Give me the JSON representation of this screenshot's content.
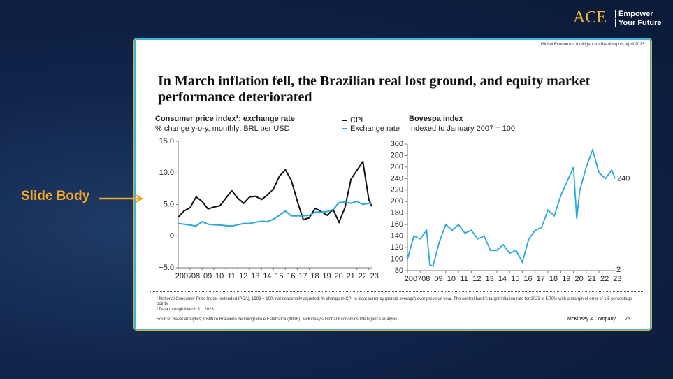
{
  "brand": {
    "logo": "ACE",
    "tagline_1": "Empower",
    "tagline_2": "Your Future"
  },
  "annotation": {
    "label": "Slide Body"
  },
  "slide": {
    "header": "Global Economics Intelligence › Brazil report, April 2023",
    "title": "In March inflation fell, the Brazilian real lost ground, and equity market performance deteriorated",
    "footnotes": [
      "¹ National Consumer Price Index (extended IPCA), 1993 = 100, not seasonally adjusted; % change in CPI in local currency (period average) over previous year. The central bank's target inflation rate for 2023 is 5.79% with a margin of error of 1.5 percentage points.",
      "² Data through March 31, 2023."
    ],
    "source": "Source: Haver Analytics; Instituto Brasileiro de Geografia e Estatística (IBGE); McKinsey's Global Economics Intelligence analysis",
    "company": "McKinsey & Company",
    "page": "26"
  },
  "chart_data": [
    {
      "type": "line",
      "title": "Consumer price index¹; exchange rate",
      "subtitle": "% change y-o-y, monthly; BRL per USD",
      "x": [
        2007,
        2007.5,
        2008,
        2008.5,
        2009,
        2009.5,
        2010,
        2010.5,
        2011,
        2011.5,
        2012,
        2012.5,
        2013,
        2013.5,
        2014,
        2014.5,
        2015,
        2015.5,
        2016,
        2016.5,
        2017,
        2017.5,
        2018,
        2018.5,
        2019,
        2019.5,
        2020,
        2020.5,
        2021,
        2021.5,
        2022,
        2022.5,
        2023,
        2023.25
      ],
      "series": [
        {
          "name": "CPI",
          "color": "#111111",
          "values": [
            3.0,
            4.0,
            4.5,
            6.2,
            5.5,
            4.3,
            4.6,
            4.8,
            6.0,
            7.2,
            6.0,
            5.2,
            6.2,
            6.3,
            5.8,
            6.5,
            7.5,
            9.5,
            10.5,
            8.8,
            5.5,
            2.6,
            2.9,
            4.4,
            3.9,
            3.3,
            4.2,
            2.2,
            4.5,
            9.0,
            10.4,
            11.8,
            5.8,
            4.7
          ]
        },
        {
          "name": "Exchange rate",
          "color": "#29a8e0",
          "values": [
            2.0,
            1.9,
            1.75,
            1.6,
            2.3,
            1.9,
            1.8,
            1.75,
            1.65,
            1.6,
            1.8,
            2.0,
            2.0,
            2.2,
            2.35,
            2.3,
            2.7,
            3.3,
            4.0,
            3.2,
            3.2,
            3.2,
            3.3,
            3.8,
            3.8,
            3.9,
            4.2,
            5.3,
            5.4,
            5.2,
            5.5,
            5.0,
            5.2,
            5.1
          ]
        }
      ],
      "xlim": [
        2007,
        2023.25
      ],
      "xticks": [
        {
          "value": 2007,
          "label": "2007"
        },
        {
          "value": 2008,
          "label": "08"
        },
        {
          "value": 2009,
          "label": "09"
        },
        {
          "value": 2010,
          "label": "10"
        },
        {
          "value": 2011,
          "label": "11"
        },
        {
          "value": 2012,
          "label": "12"
        },
        {
          "value": 2013,
          "label": "13"
        },
        {
          "value": 2014,
          "label": "14"
        },
        {
          "value": 2015,
          "label": "15"
        },
        {
          "value": 2016,
          "label": "16"
        },
        {
          "value": 2017,
          "label": "17"
        },
        {
          "value": 2018,
          "label": "18"
        },
        {
          "value": 2019,
          "label": "19"
        },
        {
          "value": 2020,
          "label": "20"
        },
        {
          "value": 2021,
          "label": "21"
        },
        {
          "value": 2022,
          "label": "22"
        },
        {
          "value": 2023,
          "label": "23"
        }
      ],
      "ylim": [
        -5,
        15
      ],
      "yticks": [
        {
          "value": -5,
          "label": "−5.0"
        },
        0,
        {
          "value": 5,
          "label": "5.0"
        },
        {
          "value": 10,
          "label": "10.0"
        },
        {
          "value": 15,
          "label": "15.0"
        }
      ],
      "grid": false,
      "legend": "top-right"
    },
    {
      "type": "line",
      "title": "Bovespa index",
      "subtitle": "Indexed to January 2007 = 100",
      "x": [
        2007,
        2007.5,
        2008,
        2008.5,
        2008.75,
        2009,
        2009.5,
        2010,
        2010.5,
        2011,
        2011.5,
        2012,
        2012.5,
        2013,
        2013.5,
        2014,
        2014.5,
        2015,
        2015.5,
        2016,
        2016.5,
        2017,
        2017.5,
        2018,
        2018.5,
        2019,
        2019.5,
        2020,
        2020.25,
        2020.5,
        2021,
        2021.5,
        2022,
        2022.5,
        2023,
        2023.25
      ],
      "values": [
        100,
        140,
        135,
        150,
        90,
        88,
        130,
        160,
        150,
        160,
        145,
        150,
        135,
        140,
        115,
        115,
        125,
        110,
        115,
        95,
        135,
        150,
        155,
        185,
        175,
        210,
        235,
        260,
        170,
        220,
        260,
        290,
        250,
        240,
        255,
        240
      ],
      "color": "#29a8e0",
      "end_label": "240",
      "axis_note": "2",
      "xlim": [
        2007,
        2023.25
      ],
      "xticks": [
        {
          "value": 2007,
          "label": "2007"
        },
        {
          "value": 2008,
          "label": "08"
        },
        {
          "value": 2009,
          "label": "09"
        },
        {
          "value": 2010,
          "label": "10"
        },
        {
          "value": 2011,
          "label": "11"
        },
        {
          "value": 2012,
          "label": "12"
        },
        {
          "value": 2013,
          "label": "13"
        },
        {
          "value": 2014,
          "label": "14"
        },
        {
          "value": 2015,
          "label": "15"
        },
        {
          "value": 2016,
          "label": "16"
        },
        {
          "value": 2017,
          "label": "17"
        },
        {
          "value": 2018,
          "label": "18"
        },
        {
          "value": 2019,
          "label": "19"
        },
        {
          "value": 2020,
          "label": "20"
        },
        {
          "value": 2021,
          "label": "21"
        },
        {
          "value": 2022,
          "label": "22"
        },
        {
          "value": 2023,
          "label": "23"
        }
      ],
      "ylim": [
        80,
        300
      ],
      "yticks": [
        80,
        100,
        120,
        140,
        160,
        180,
        200,
        220,
        240,
        260,
        280,
        300
      ],
      "grid": false
    }
  ]
}
